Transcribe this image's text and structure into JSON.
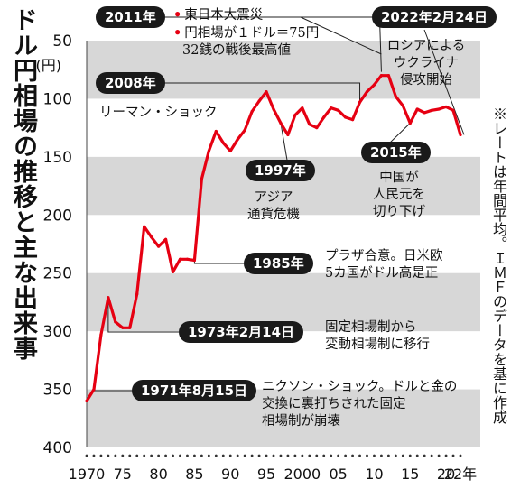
{
  "title": "ドル円相場の推移と主な出来事",
  "note": "※レートは年間平均。ＩＭＦのデータを基に作成",
  "colors": {
    "line": "#e60012",
    "band": "#d7d7d7",
    "tag_bg": "#1a1a1a"
  },
  "chart_data": {
    "type": "line",
    "title": "ドル円相場の推移と主な出来事",
    "ylabel": "(円)",
    "xlabel": "",
    "y_inverted": true,
    "ylim": [
      50,
      400
    ],
    "xlim": [
      1970,
      2022
    ],
    "y_ticks": [
      50,
      100,
      150,
      200,
      250,
      300,
      350,
      400
    ],
    "y_unit_label": "(円)",
    "x_ticks": [
      {
        "x": 1970,
        "label": "1970"
      },
      {
        "x": 1975,
        "label": "75"
      },
      {
        "x": 1980,
        "label": "80"
      },
      {
        "x": 1985,
        "label": "85"
      },
      {
        "x": 1990,
        "label": "90"
      },
      {
        "x": 1995,
        "label": "95"
      },
      {
        "x": 2000,
        "label": "2000"
      },
      {
        "x": 2005,
        "label": "05"
      },
      {
        "x": 2010,
        "label": "10"
      },
      {
        "x": 2015,
        "label": "15"
      },
      {
        "x": 2020,
        "label": "20"
      },
      {
        "x": 2022,
        "label": "22年"
      }
    ],
    "x": [
      1970,
      1971,
      1972,
      1973,
      1974,
      1975,
      1976,
      1977,
      1978,
      1979,
      1980,
      1981,
      1982,
      1983,
      1984,
      1985,
      1986,
      1987,
      1988,
      1989,
      1990,
      1991,
      1992,
      1993,
      1994,
      1995,
      1996,
      1997,
      1998,
      1999,
      2000,
      2001,
      2002,
      2003,
      2004,
      2005,
      2006,
      2007,
      2008,
      2009,
      2010,
      2011,
      2012,
      2013,
      2014,
      2015,
      2016,
      2017,
      2018,
      2019,
      2020,
      2021,
      2022
    ],
    "series": [
      {
        "values": [
          360,
          350,
          303,
          271,
          292,
          297,
          297,
          268,
          210,
          219,
          227,
          221,
          249,
          238,
          238,
          239,
          169,
          145,
          128,
          138,
          145,
          135,
          127,
          111,
          102,
          94,
          109,
          121,
          131,
          114,
          108,
          122,
          125,
          116,
          108,
          110,
          116,
          118,
          103,
          94,
          88,
          80,
          80,
          98,
          106,
          121,
          109,
          112,
          110,
          109,
          107,
          110,
          131
        ]
      }
    ],
    "grid_bands": [
      [
        50,
        100
      ],
      [
        150,
        200
      ],
      [
        250,
        300
      ],
      [
        350,
        400
      ]
    ]
  },
  "annotations": {
    "a2011": {
      "tag": "2011年",
      "line1": "東日本大震災",
      "line2": "円相場が１ドル＝75円",
      "line3": "32銭の戦後最高値"
    },
    "a2022": {
      "tag": "2022年2月24日",
      "line1": "ロシアによる",
      "line2": "ウクライナ",
      "line3": "侵攻開始"
    },
    "a2008": {
      "tag": "2008年",
      "line1": "リーマン・ショック"
    },
    "a1997": {
      "tag": "1997年",
      "line1": "アジア",
      "line2": "通貨危機"
    },
    "a2015": {
      "tag": "2015年",
      "line1": "中国が",
      "line2": "人民元を",
      "line3": "切り下げ"
    },
    "a1985": {
      "tag": "1985年",
      "line1": "プラザ合意。日米欧",
      "line2": "5カ国がドル高是正"
    },
    "a1973": {
      "tag": "1973年2月14日",
      "line1": "固定相場制から",
      "line2": "変動相場制に移行"
    },
    "a1971": {
      "tag": "1971年8月15日",
      "line1": "ニクソン・ショック。ドルと金の",
      "line2": "交換に裏打ちされた固定",
      "line3": "相場制が崩壊"
    }
  }
}
